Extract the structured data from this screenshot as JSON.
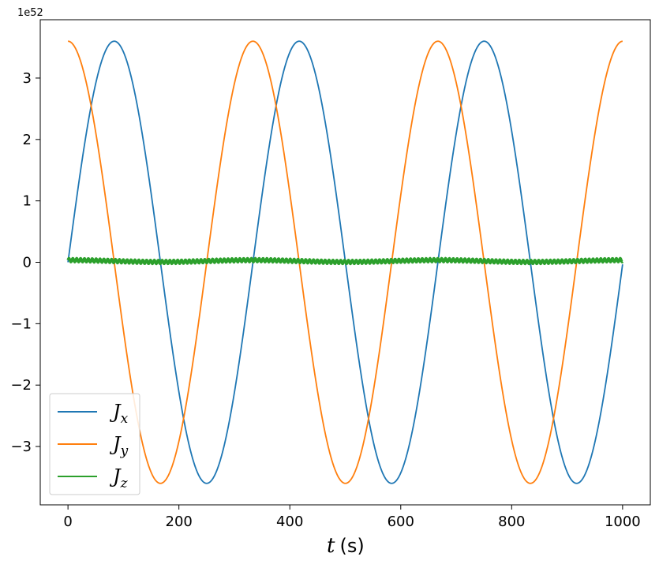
{
  "chart_data": {
    "type": "line",
    "xlabel": "t",
    "xlabel_unit": "(s)",
    "ylabel": "",
    "xlim": [
      -50,
      1050
    ],
    "ylim": [
      -3.95,
      3.95
    ],
    "y_scale_label": "1e52",
    "xticks": [
      0,
      200,
      400,
      600,
      800,
      1000
    ],
    "xtick_labels": [
      "0",
      "200",
      "400",
      "600",
      "800",
      "1000"
    ],
    "yticks": [
      -3,
      -2,
      -1,
      0,
      1,
      2,
      3
    ],
    "ytick_labels": [
      "−3",
      "−2",
      "−1",
      "0",
      "1",
      "2",
      "3"
    ],
    "grid": false,
    "legend_position": "lower-left",
    "series": [
      {
        "name": "J",
        "subscript": "x",
        "color": "#1f77b4",
        "amplitude": 3.6,
        "period": 333.5,
        "phase": 0,
        "kind": "sin",
        "t_end": 1000
      },
      {
        "name": "J",
        "subscript": "y",
        "color": "#ff7f0e",
        "amplitude": 3.6,
        "period": 333.5,
        "phase": 0,
        "kind": "cos",
        "t_end": 1000
      },
      {
        "name": "J",
        "subscript": "z",
        "color": "#2ca02c",
        "offset": 0.02,
        "slow_amplitude": 0.015,
        "slow_period": 333.5,
        "wobble_amplitude": 0.03,
        "kind": "flat",
        "t_end": 1000
      }
    ]
  }
}
